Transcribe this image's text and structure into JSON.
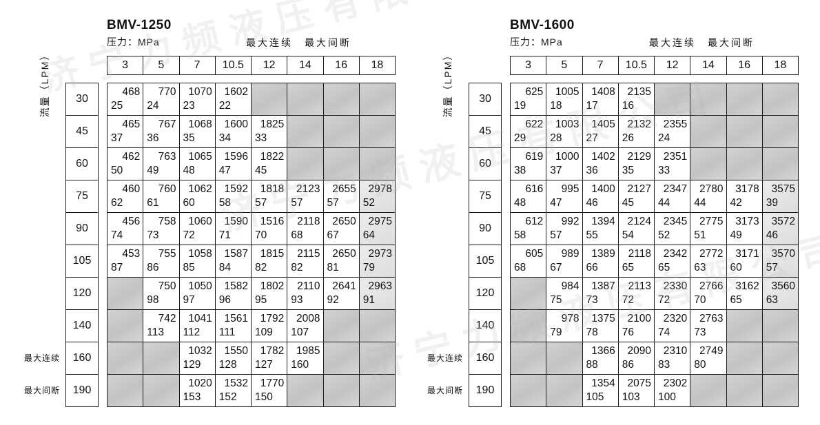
{
  "labels": {
    "flow": "流量（LPM）",
    "pressure": "压力：MPa",
    "max_header": "最大连续　最大间断",
    "continuous": "最大连续",
    "intermittent": "最大间断"
  },
  "watermark": {
    "text": "济宁力频液压有限公司"
  },
  "columns": [
    "3",
    "5",
    "7",
    "10.5",
    "12",
    "14",
    "16",
    "18"
  ],
  "tables": [
    {
      "title": "BMV-1250",
      "rows": [
        {
          "flow": "30",
          "cells": [
            [
              "468",
              "25"
            ],
            [
              "770",
              "24"
            ],
            [
              "1070",
              "23"
            ],
            [
              "1602",
              "22"
            ],
            null,
            null,
            null,
            null
          ]
        },
        {
          "flow": "45",
          "cells": [
            [
              "465",
              "37"
            ],
            [
              "767",
              "36"
            ],
            [
              "1068",
              "35"
            ],
            [
              "1600",
              "34"
            ],
            [
              "1825",
              "33"
            ],
            null,
            null,
            null
          ]
        },
        {
          "flow": "60",
          "cells": [
            [
              "462",
              "50"
            ],
            [
              "763",
              "49"
            ],
            [
              "1065",
              "48"
            ],
            [
              "1596",
              "47"
            ],
            [
              "1822",
              "45"
            ],
            null,
            null,
            null
          ]
        },
        {
          "flow": "75",
          "cells": [
            [
              "460",
              "62"
            ],
            [
              "760",
              "61"
            ],
            [
              "1062",
              "60"
            ],
            [
              "1592",
              "58"
            ],
            [
              "1818",
              "57"
            ],
            [
              "2123",
              "57"
            ],
            [
              "2655",
              "57"
            ],
            [
              "2978",
              "52"
            ]
          ]
        },
        {
          "flow": "90",
          "cells": [
            [
              "456",
              "74"
            ],
            [
              "758",
              "73"
            ],
            [
              "1060",
              "72"
            ],
            [
              "1590",
              "71"
            ],
            [
              "1516",
              "70"
            ],
            [
              "2118",
              "68"
            ],
            [
              "2650",
              "67"
            ],
            [
              "2975",
              "64"
            ]
          ]
        },
        {
          "flow": "105",
          "cells": [
            [
              "453",
              "87"
            ],
            [
              "755",
              "86"
            ],
            [
              "1058",
              "85"
            ],
            [
              "1587",
              "84"
            ],
            [
              "1815",
              "82"
            ],
            [
              "2115",
              "82"
            ],
            [
              "2650",
              "81"
            ],
            [
              "2973",
              "79"
            ]
          ]
        },
        {
          "flow": "120",
          "cells": [
            null,
            [
              "750",
              "98"
            ],
            [
              "1050",
              "97"
            ],
            [
              "1582",
              "96"
            ],
            [
              "1802",
              "95"
            ],
            [
              "2110",
              "93"
            ],
            [
              "2641",
              "92"
            ],
            [
              "2963",
              "91"
            ]
          ]
        },
        {
          "flow": "140",
          "cells": [
            null,
            [
              "742",
              "113"
            ],
            [
              "1041",
              "112"
            ],
            [
              "1561",
              "111"
            ],
            [
              "1792",
              "109"
            ],
            [
              "2008",
              "107"
            ],
            null,
            null
          ]
        },
        {
          "flow": "160",
          "cells": [
            null,
            null,
            [
              "1032",
              "129"
            ],
            [
              "1550",
              "128"
            ],
            [
              "1782",
              "127"
            ],
            [
              "1985",
              "160"
            ],
            null,
            null
          ]
        },
        {
          "flow": "190",
          "cells": [
            null,
            null,
            [
              "1020",
              "153"
            ],
            [
              "1532",
              "152"
            ],
            [
              "1770",
              "150"
            ],
            null,
            null,
            null
          ]
        }
      ]
    },
    {
      "title": "BMV-1600",
      "rows": [
        {
          "flow": "30",
          "cells": [
            [
              "625",
              "19"
            ],
            [
              "1005",
              "18"
            ],
            [
              "1408",
              "17"
            ],
            [
              "2135",
              "16"
            ],
            null,
            null,
            null,
            null
          ]
        },
        {
          "flow": "45",
          "cells": [
            [
              "622",
              "29"
            ],
            [
              "1003",
              "28"
            ],
            [
              "1405",
              "27"
            ],
            [
              "2132",
              "26"
            ],
            [
              "2355",
              "24"
            ],
            null,
            null,
            null
          ]
        },
        {
          "flow": "60",
          "cells": [
            [
              "619",
              "38"
            ],
            [
              "1000",
              "37"
            ],
            [
              "1402",
              "36"
            ],
            [
              "2129",
              "35"
            ],
            [
              "2351",
              "33"
            ],
            null,
            null,
            null
          ]
        },
        {
          "flow": "75",
          "cells": [
            [
              "616",
              "48"
            ],
            [
              "995",
              "47"
            ],
            [
              "1400",
              "46"
            ],
            [
              "2127",
              "45"
            ],
            [
              "2347",
              "44"
            ],
            [
              "2780",
              "44"
            ],
            [
              "3178",
              "42"
            ],
            [
              "3575",
              "39"
            ]
          ]
        },
        {
          "flow": "90",
          "cells": [
            [
              "612",
              "58"
            ],
            [
              "992",
              "57"
            ],
            [
              "1394",
              "55"
            ],
            [
              "2124",
              "54"
            ],
            [
              "2345",
              "52"
            ],
            [
              "2775",
              "51"
            ],
            [
              "3173",
              "49"
            ],
            [
              "3572",
              "46"
            ]
          ]
        },
        {
          "flow": "105",
          "cells": [
            [
              "605",
              "68"
            ],
            [
              "989",
              "67"
            ],
            [
              "1389",
              "66"
            ],
            [
              "2118",
              "65"
            ],
            [
              "2342",
              "65"
            ],
            [
              "2772",
              "63"
            ],
            [
              "3171",
              "60"
            ],
            [
              "3570",
              "57"
            ]
          ]
        },
        {
          "flow": "120",
          "cells": [
            null,
            [
              "984",
              "75"
            ],
            [
              "1387",
              "73"
            ],
            [
              "2113",
              "72"
            ],
            [
              "2330",
              "72"
            ],
            [
              "2766",
              "70"
            ],
            [
              "3162",
              "65"
            ],
            [
              "3560",
              "63"
            ]
          ]
        },
        {
          "flow": "140",
          "cells": [
            null,
            [
              "978",
              "79"
            ],
            [
              "1375",
              "78"
            ],
            [
              "2100",
              "76"
            ],
            [
              "2320",
              "74"
            ],
            [
              "2763",
              "73"
            ],
            null,
            null
          ]
        },
        {
          "flow": "160",
          "cells": [
            null,
            null,
            [
              "1366",
              "88"
            ],
            [
              "2090",
              "86"
            ],
            [
              "2310",
              "83"
            ],
            [
              "2749",
              "80"
            ],
            null,
            null
          ]
        },
        {
          "flow": "190",
          "cells": [
            null,
            null,
            [
              "1354",
              "105"
            ],
            [
              "2075",
              "103"
            ],
            [
              "2302",
              "100"
            ],
            null,
            null,
            null
          ]
        }
      ]
    }
  ]
}
